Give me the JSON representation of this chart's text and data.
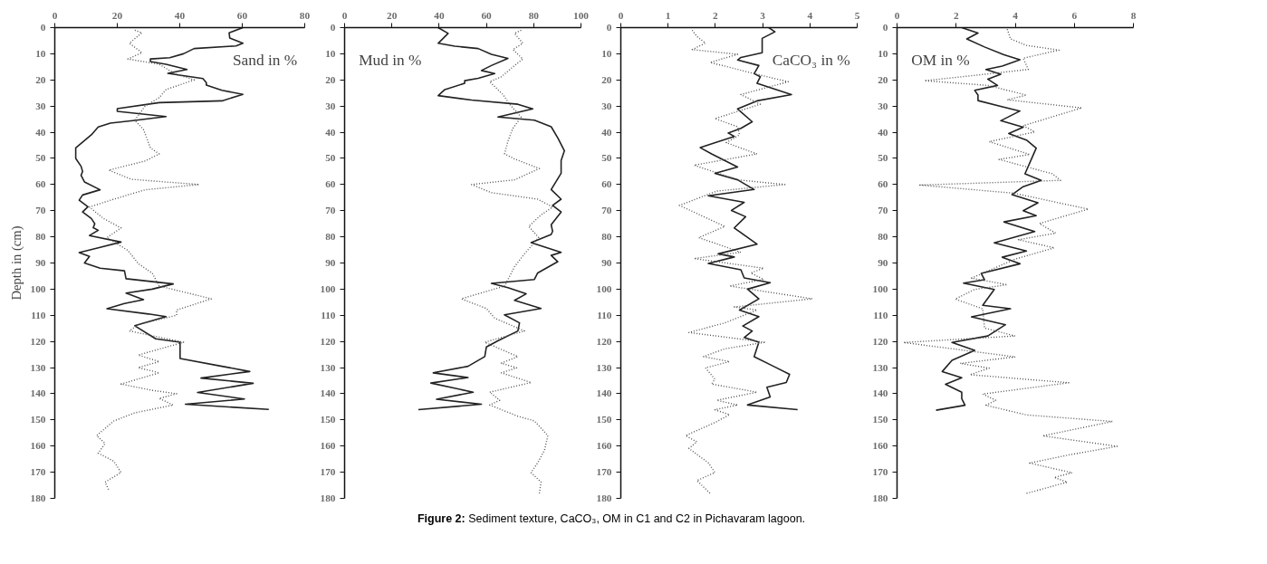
{
  "chart_data": [
    {
      "type": "line",
      "orientation": "horizontal",
      "ylabel": "Depth in (cm)",
      "annotations": [
        "Sand in %",
        "Figure 2: Sediment texture, CaCO₃, OM in C1 and C2 in Pichavaram lagoon."
      ],
      "xlim": [
        0,
        80
      ],
      "xticks": [
        0,
        20,
        40,
        60,
        80
      ],
      "ylim": [
        180,
        0
      ],
      "yticks": [
        0,
        10,
        20,
        30,
        40,
        50,
        60,
        70,
        80,
        90,
        100,
        110,
        120,
        130,
        140,
        150,
        160,
        170,
        180
      ],
      "series": [
        {
          "color": "#222222",
          "line_style": "solid",
          "x": [
            0,
            2,
            4,
            6,
            7,
            8,
            10,
            11.5,
            12,
            13,
            14,
            16,
            17.5,
            18,
            19.5,
            21,
            22,
            24,
            25.5,
            28,
            28.7,
            31,
            32,
            34,
            35.5,
            36.5,
            38,
            41,
            46,
            50,
            53,
            55,
            56.5,
            59,
            62,
            64,
            66,
            68.5,
            70.5,
            73,
            75,
            76.5,
            77.5,
            79.5,
            82,
            84,
            86,
            87.5,
            90,
            92,
            93,
            96,
            98,
            100,
            101.5,
            104,
            105.5,
            107.5,
            109.5,
            110.5,
            114,
            119,
            120.3,
            126.5,
            129.5,
            131.5,
            134,
            136,
            139.5,
            142,
            144,
            146
          ],
          "values": [
            60.2,
            55.8,
            56,
            60.2,
            58,
            44.6,
            41.2,
            36.8,
            30.6,
            30.6,
            35.6,
            42.3,
            36.2,
            39,
            47.4,
            48.5,
            48.5,
            53.5,
            60.2,
            53.5,
            33.4,
            20,
            20,
            35.6,
            25.6,
            17.8,
            13.9,
            11.7,
            6.7,
            6.7,
            8.4,
            8.9,
            8.4,
            9.5,
            14.5,
            8.9,
            7.8,
            10.6,
            8.9,
            11.7,
            12.8,
            12.3,
            13.9,
            11.1,
            21.2,
            14.5,
            7.8,
            11.1,
            9.5,
            14.5,
            22.3,
            22.8,
            37.9,
            31.2,
            22.8,
            28.4,
            22.3,
            16.7,
            30,
            35.6,
            25.6,
            32.3,
            40.1,
            40.1,
            53.5,
            62.4,
            46.8,
            63.5,
            45.7,
            60.7,
            41.8,
            68.5
          ]
        },
        {
          "color": "#555555",
          "line_style": "dotted",
          "x": [
            1,
            2,
            4.7,
            6,
            9.6,
            12,
            14,
            17.6,
            20,
            23.7,
            26.8,
            30,
            35.4,
            39,
            46,
            48.3,
            51,
            54.5,
            58,
            60,
            62,
            65.6,
            68.6,
            73,
            76.6,
            80.3,
            85.2,
            90.2,
            93.9,
            98.8,
            103.7,
            108,
            110,
            113.5,
            116,
            120.3,
            125.2,
            127.7,
            130,
            132,
            136.3,
            138.7,
            140,
            141.8,
            144.3,
            147.3,
            150.4,
            156,
            159,
            162.7,
            165.8,
            170.1,
            173.8,
            176.9
          ],
          "values": [
            25.6,
            27.9,
            25.1,
            23.9,
            27.9,
            23.4,
            33.4,
            38.4,
            44.6,
            35.6,
            33.4,
            28.9,
            25.6,
            28.4,
            30.6,
            33.4,
            28.9,
            17.3,
            24.5,
            46.2,
            28.9,
            18.9,
            11.1,
            15.6,
            21.2,
            16.7,
            23.4,
            26.7,
            31.2,
            33.4,
            50.1,
            39,
            39,
            26.7,
            23.9,
            41.2,
            26.7,
            33.4,
            26.7,
            33.4,
            21.2,
            31.2,
            39,
            33.4,
            37.9,
            25.6,
            18.9,
            13.4,
            16.1,
            13.9,
            18.9,
            21.2,
            16.1,
            17.3
          ]
        }
      ]
    },
    {
      "type": "line",
      "orientation": "horizontal",
      "annotations": [
        "Mud in %"
      ],
      "xlim": [
        0,
        100
      ],
      "xticks": [
        0,
        20,
        40,
        60,
        80,
        100
      ],
      "ylim": [
        180,
        0
      ],
      "yticks": [
        0,
        10,
        20,
        30,
        40,
        50,
        60,
        70,
        80,
        90,
        100,
        110,
        120,
        130,
        140,
        150,
        160,
        170,
        180
      ],
      "series": [
        {
          "color": "#222222",
          "line_style": "solid",
          "x": [
            0,
            2.2,
            6,
            7.1,
            8,
            10.2,
            11.8,
            14.5,
            16.4,
            17.6,
            19.4,
            20.3,
            21.3,
            23.7,
            26,
            27.7,
            29.3,
            31.1,
            34.2,
            35.4,
            37.9,
            42.2,
            47.1,
            50.8,
            55.7,
            61.9,
            65.6,
            68,
            70.5,
            75.4,
            77.9,
            79.1,
            82.2,
            85.9,
            87.1,
            89.5,
            93.8,
            96.3,
            97.8,
            99.4,
            101.8,
            104.3,
            107.4,
            109.8,
            112.9,
            116,
            119.7,
            122.1,
            125.8,
            129.5,
            132,
            133.8,
            135.9,
            139.4,
            142.1,
            144,
            146.1
          ],
          "values": [
            39.6,
            43.8,
            39.6,
            46.6,
            56.5,
            62.1,
            69.1,
            62.1,
            57.9,
            63.5,
            56.5,
            50.8,
            50.8,
            42.4,
            39.6,
            53.7,
            73.3,
            79.6,
            64.9,
            80.3,
            87.4,
            90.2,
            93,
            91.6,
            91.6,
            87.4,
            91.6,
            88,
            91.6,
            87.4,
            88,
            87.4,
            78.9,
            91.6,
            87.4,
            90.2,
            81.7,
            80.3,
            62.1,
            69.1,
            76.8,
            71.9,
            83.1,
            67.6,
            74,
            73.3,
            65,
            60,
            59.3,
            52.2,
            37.5,
            52.2,
            36.5,
            54.4,
            38.9,
            57.9,
            31.2
          ]
        },
        {
          "color": "#555555",
          "line_style": "dotted",
          "x": [
            1,
            2.2,
            6,
            8.4,
            12,
            14.5,
            18.8,
            20.7,
            25.6,
            29.3,
            34.2,
            38.5,
            43.4,
            48.3,
            50.2,
            53.9,
            58.2,
            60,
            63.1,
            65.6,
            68.6,
            71.7,
            76,
            80.3,
            86.5,
            91.4,
            98.8,
            103.7,
            107.4,
            111.1,
            116,
            120.3,
            125.8,
            128.3,
            130.1,
            132,
            135.7,
            139.4,
            142.5,
            144.3,
            148.6,
            150.4,
            156,
            161.5,
            166.4,
            170.1,
            173.8,
            178.1
          ],
          "values": [
            74.7,
            71.9,
            75.4,
            71.2,
            75.4,
            71.9,
            66.3,
            61.4,
            67,
            69.8,
            74.7,
            71.2,
            69.1,
            67.7,
            71.9,
            82.4,
            71.9,
            53.7,
            62.1,
            81.7,
            88,
            83,
            77.9,
            82.1,
            76.1,
            71.9,
            67.7,
            49.4,
            60,
            63.5,
            76.1,
            59.3,
            73.3,
            66.3,
            72.8,
            66.3,
            78.9,
            61.4,
            65.6,
            61.4,
            73.3,
            80.3,
            86,
            84.6,
            81.7,
            78.9,
            83.1,
            82.4
          ]
        }
      ]
    },
    {
      "type": "line",
      "orientation": "horizontal",
      "annotations": [
        "CaCO₃ in %"
      ],
      "xlim": [
        0,
        5
      ],
      "xticks": [
        0,
        1,
        2,
        3,
        4,
        5
      ],
      "ylim": [
        180,
        0
      ],
      "yticks": [
        0,
        10,
        20,
        30,
        40,
        50,
        60,
        70,
        80,
        90,
        100,
        110,
        120,
        130,
        140,
        150,
        160,
        170,
        180
      ],
      "series": [
        {
          "color": "#222222",
          "line_style": "solid",
          "x": [
            0,
            1.6,
            4.1,
            9.6,
            11.4,
            12.4,
            14.5,
            17.6,
            18.8,
            21.3,
            25.6,
            28,
            31.1,
            36,
            38.5,
            40.3,
            41.6,
            44,
            45.9,
            48.3,
            53.3,
            55.7,
            58.2,
            61.9,
            64.3,
            66.8,
            69.9,
            72.3,
            76.6,
            82.8,
            86.5,
            87.7,
            90.2,
            92.6,
            95.7,
            97.5,
            100,
            103.7,
            108,
            110.5,
            114.1,
            116,
            118.5,
            120.3,
            125.8,
            129.5,
            132.6,
            135.7,
            137.5,
            141.2,
            144.3,
            146.1
          ],
          "values": [
            3.13,
            3.26,
            2.99,
            2.99,
            2.54,
            2.47,
            2.92,
            2.82,
            2.95,
            2.88,
            3.61,
            2.88,
            2.47,
            2.78,
            2.54,
            2.27,
            2.4,
            2.0,
            1.68,
            1.92,
            2.47,
            1.99,
            2.47,
            2.82,
            1.85,
            2.61,
            2.34,
            2.64,
            2.4,
            2.88,
            2.06,
            2.4,
            1.85,
            2.54,
            2.61,
            3.16,
            2.68,
            2.92,
            2.51,
            2.92,
            2.58,
            2.78,
            2.61,
            2.92,
            2.82,
            3.23,
            3.57,
            3.5,
            3.09,
            3.16,
            2.68,
            3.74
          ]
        },
        {
          "color": "#555555",
          "line_style": "dotted",
          "x": [
            1,
            3.4,
            5.9,
            8.4,
            10.2,
            13.3,
            17.6,
            20.7,
            25.6,
            29.3,
            34.8,
            37.9,
            41,
            44,
            48.3,
            52.6,
            58.2,
            60,
            62.5,
            68,
            76,
            80.3,
            85.9,
            88.3,
            92,
            93.8,
            96.3,
            98.8,
            103.7,
            106.8,
            108,
            112.9,
            116.6,
            120.3,
            122.8,
            125.8,
            127.7,
            130.1,
            134.4,
            136.3,
            139.4,
            142.5,
            144.3,
            146.1,
            148,
            151,
            156,
            158.4,
            160.9,
            166.4,
            170.1,
            173.2,
            178.1
          ],
          "values": [
            1.51,
            1.61,
            1.79,
            1.51,
            2.47,
            1.89,
            2.82,
            3.54,
            2.54,
            2.95,
            1.99,
            2.47,
            2.51,
            2.23,
            2.88,
            1.55,
            2.47,
            3.47,
            2.03,
            1.24,
            2.2,
            1.65,
            2.54,
            1.55,
            3.02,
            2.75,
            3.02,
            2.3,
            4.05,
            2.4,
            2.88,
            2.2,
            1.44,
            3.06,
            2.2,
            1.75,
            2.3,
            1.79,
            1.99,
            1.92,
            2.88,
            2.03,
            2.47,
            1.99,
            2.3,
            1.99,
            1.37,
            1.61,
            1.44,
            1.85,
            1.99,
            1.61,
            1.89
          ]
        }
      ]
    },
    {
      "type": "line",
      "orientation": "horizontal",
      "annotations": [
        "OM in %"
      ],
      "xlim": [
        0,
        8
      ],
      "xticks": [
        0,
        2,
        4,
        6,
        8
      ],
      "ylim": [
        180,
        0
      ],
      "yticks": [
        0,
        10,
        20,
        30,
        40,
        50,
        60,
        70,
        80,
        90,
        100,
        110,
        120,
        130,
        140,
        150,
        160,
        170,
        180
      ],
      "series": [
        {
          "color": "#222222",
          "line_style": "solid",
          "x": [
            0,
            2.1,
            4.3,
            7.4,
            10.4,
            12.3,
            14.7,
            16,
            17.8,
            19.7,
            22.1,
            24,
            25.8,
            27.9,
            30.1,
            31.9,
            35.6,
            38.1,
            40.5,
            43,
            46.1,
            55.9,
            58.4,
            60.8,
            63.9,
            67,
            70,
            71.9,
            74.3,
            78,
            82.3,
            85.4,
            87.8,
            90.3,
            94,
            96.4,
            97.7,
            100.1,
            106.2,
            107.5,
            110.6,
            113.6,
            117.9,
            120.4,
            123.4,
            127.2,
            131.5,
            133.9,
            136.4,
            139.4,
            141.9,
            144.4,
            146.3
          ],
          "values": [
            2.19,
            2.74,
            2.36,
            2.96,
            3.62,
            4.16,
            3.56,
            3.01,
            3.51,
            3.07,
            3.4,
            2.63,
            2.74,
            2.74,
            3.51,
            4.16,
            3.51,
            4.27,
            3.78,
            4.38,
            4.71,
            4.33,
            4.88,
            4.27,
            3.89,
            4.77,
            4.27,
            4.71,
            3.62,
            4.66,
            3.29,
            4.38,
            3.56,
            4.16,
            2.85,
            2.96,
            2.25,
            3.29,
            2.9,
            3.84,
            2.52,
            3.67,
            3.07,
            1.86,
            2.63,
            1.86,
            1.53,
            2.19,
            1.64,
            2.19,
            2.19,
            2.3,
            1.32
          ]
        },
        {
          "color": "#555555",
          "line_style": "dotted",
          "x": [
            0.6,
            4.3,
            6.8,
            8.6,
            11.7,
            16,
            18.4,
            20.3,
            22.1,
            25.8,
            27.6,
            30.7,
            37.5,
            39.9,
            43.6,
            48.5,
            50.4,
            55.9,
            58.4,
            60.2,
            63.3,
            69.4,
            74.9,
            78.6,
            81.1,
            84.2,
            88.5,
            95.8,
            98.3,
            100.1,
            103.8,
            107.5,
            114.9,
            117.9,
            120.4,
            125.9,
            128.4,
            130.2,
            132.7,
            135.8,
            140.1,
            142.5,
            144.4,
            148.1,
            150.6,
            156.1,
            160.1,
            163.4,
            166.5,
            170.2,
            172,
            173.8,
            178.1
          ],
          "values": [
            3.73,
            3.84,
            4.38,
            5.48,
            4.27,
            4.44,
            2.52,
            0.93,
            3.07,
            4.38,
            3.73,
            6.25,
            4.27,
            4.66,
            3.12,
            4.49,
            3.45,
            5.26,
            5.53,
            0.77,
            3.95,
            6.47,
            4.82,
            5.37,
            4.11,
            5.32,
            4.0,
            2.52,
            3.73,
            2.63,
            1.97,
            2.9,
            2.96,
            4.0,
            0.22,
            4.0,
            2.14,
            3.12,
            2.47,
            5.81,
            2.9,
            3.34,
            3.01,
            4.38,
            7.29,
            4.93,
            7.45,
            5.81,
            4.49,
            5.92,
            5.32,
            5.76,
            4.38
          ]
        }
      ]
    }
  ]
}
